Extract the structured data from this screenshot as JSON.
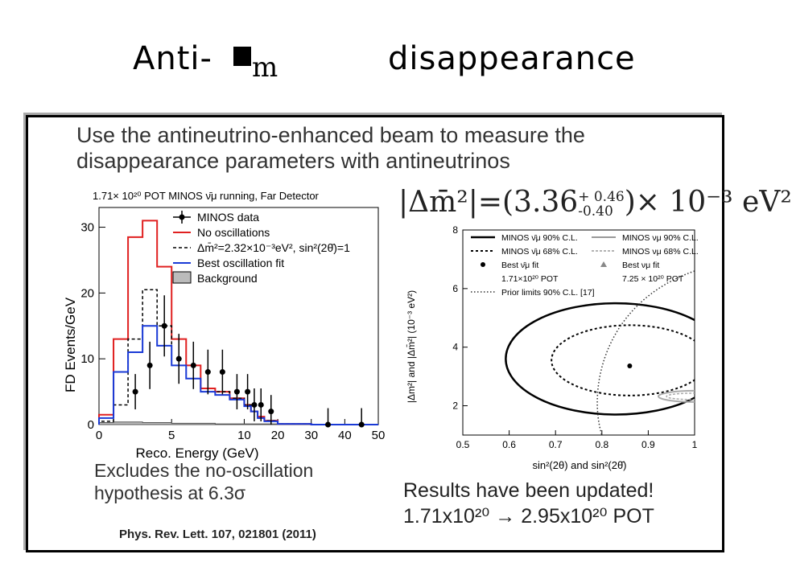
{
  "title": {
    "prefix": "Anti-",
    "symbol": "■",
    "mu": "m",
    "word": "disappearance"
  },
  "intro": {
    "line1": "Use the antineutrino-enhanced beam to measure the",
    "line2": "disappearance parameters with antineutrinos"
  },
  "histogram": {
    "heading": "1.71× 10²⁰ POT MINOS ν̄μ running, Far Detector",
    "ylabel": "FD Events/GeV",
    "xlabel": "Reco. Energy (GeV)",
    "legend": [
      "MINOS data",
      "No oscillations",
      "Δm̄²=2.32×10⁻³eV², sin²(2θ̄)=1",
      "Best oscillation fit",
      "Background"
    ],
    "colors": {
      "data": "#000000",
      "no_osc": "#e02020",
      "dashed": "#000000",
      "best_fit": "#1a3ad6",
      "background": "#bbbbbb"
    }
  },
  "chart_data": [
    {
      "type": "line",
      "title": "1.71× 10²⁰ POT MINOS ν̄μ running, Far Detector",
      "xlabel": "Reco. Energy (GeV)",
      "ylabel": "FD Events/GeV",
      "ylim": [
        0,
        33
      ],
      "x_ticks": [
        "0",
        "5",
        "10",
        "20",
        "30",
        "40",
        "50"
      ],
      "y_ticks": [
        "0",
        "10",
        "20",
        "30"
      ],
      "bin_edges": [
        0,
        1,
        2,
        3,
        4,
        5,
        6,
        7,
        8,
        9,
        10,
        12,
        14,
        16,
        20,
        30,
        40,
        50
      ],
      "series": [
        {
          "name": "No oscillations",
          "values": [
            1.5,
            13,
            28.5,
            31,
            24,
            13,
            9,
            5.5,
            5,
            4,
            3,
            2,
            1.2,
            0.6,
            0.1,
            0,
            0
          ]
        },
        {
          "name": "Δm̄²=2.32×10⁻³eV², sin²(2θ̄)=1",
          "values": [
            0.5,
            3,
            13,
            20.5,
            15,
            9,
            7,
            5,
            5,
            4,
            3,
            2,
            1,
            0.6,
            0.1,
            0,
            0
          ]
        },
        {
          "name": "Best oscillation fit",
          "values": [
            1,
            8,
            11,
            15,
            12,
            9,
            7,
            5,
            4.5,
            3.8,
            2.8,
            2,
            1,
            0.5,
            0.1,
            0,
            0
          ]
        },
        {
          "name": "Background",
          "values": [
            0.3,
            0.4,
            0.4,
            0.3,
            0.3,
            0.2,
            0.2,
            0.2,
            0.1,
            0.1,
            0.1,
            0.1,
            0.1,
            0.1,
            0,
            0,
            0
          ]
        }
      ],
      "data_points": {
        "name": "MINOS data",
        "x": [
          2.5,
          3.5,
          4.5,
          5.5,
          6.5,
          7.5,
          8.5,
          9.5,
          11,
          13,
          15,
          18,
          35,
          45
        ],
        "y": [
          5,
          9,
          15,
          10,
          9,
          8,
          8,
          5,
          5,
          3,
          3,
          2,
          0,
          0
        ]
      }
    },
    {
      "type": "scatter",
      "xlabel": "sin²(2θ) and sin²(2θ̄)",
      "ylabel": "|Δm²| and |Δm̄²| (10⁻³ eV²)",
      "xlim": [
        0.5,
        1.0
      ],
      "ylim": [
        1,
        8
      ],
      "x_ticks": [
        "0.5",
        "0.6",
        "0.7",
        "0.8",
        "0.9",
        "1"
      ],
      "y_ticks": [
        "2",
        "4",
        "6",
        "8"
      ],
      "best_fit_nubar": {
        "x": 0.86,
        "y": 3.36
      },
      "legend": [
        "MINOS ν̄μ 90% C.L.",
        "MINOS ν̄μ 68% C.L.",
        "Best ν̄μ fit",
        "1.71×10²⁰ POT",
        "MINOS νμ 90% C.L.",
        "MINOS νμ 68% C.L.",
        "Best νμ fit",
        "7.25 × 10²⁰ POT",
        "Prior limits 90% C.L. [17]"
      ]
    }
  ],
  "formula": {
    "lhs": "|Δm̄²|=(3.36",
    "sup": "+ 0.46",
    "sub": "-0.40",
    "rhs": ")× 10⁻³ eV²"
  },
  "contour": {
    "ylabel": "|Δm²| and |Δm̄²| (10⁻³ eV²)",
    "xlabel": "sin²(2θ) and sin²(2θ̄)"
  },
  "exclusion": {
    "line1": "Excludes the no-oscillation",
    "line2": "hypothesis at 6.3σ"
  },
  "reference": "Phys. Rev. Lett. 107, 021801 (2011)",
  "results": {
    "line1": "Results have been updated!",
    "line2": "1.71x10²⁰ → 2.95x10²⁰ POT"
  }
}
